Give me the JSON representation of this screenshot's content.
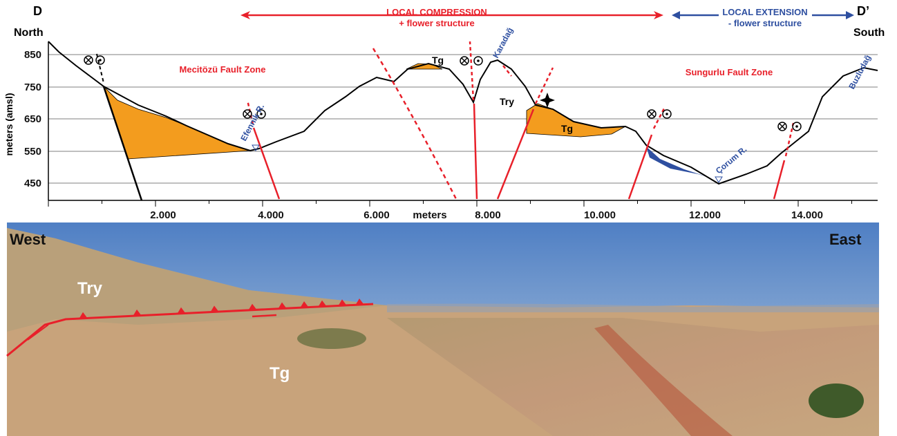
{
  "header": {
    "left_label": "D",
    "left_direction": "North",
    "right_label": "D’",
    "right_direction": "South",
    "compression": {
      "line1": "LOCAL COMPRESSION",
      "line2": "+ flower structure"
    },
    "extension": {
      "line1": "LOCAL EXTENSION",
      "line2": "- flower structure"
    }
  },
  "section": {
    "y_axis_title": "meters (amsl)",
    "y_ticks": [
      "850",
      "750",
      "650",
      "550",
      "450"
    ],
    "x_ticks": [
      "2.000",
      "4.000",
      "6.000",
      "8.000",
      "10.000",
      "12.000",
      "14.000"
    ],
    "x_axis_title": "meters",
    "zones": [
      "Mecitözü Fault Zone",
      "Sungurlu Fault Zone"
    ],
    "places": [
      "Karadağ",
      "Efennik R.",
      "Çorum R.",
      "Buzludağ"
    ],
    "units": [
      "Tg",
      "Try",
      "Tg"
    ]
  },
  "photo": {
    "west": "West",
    "east": "East",
    "units": [
      "Try",
      "Tg"
    ]
  }
}
